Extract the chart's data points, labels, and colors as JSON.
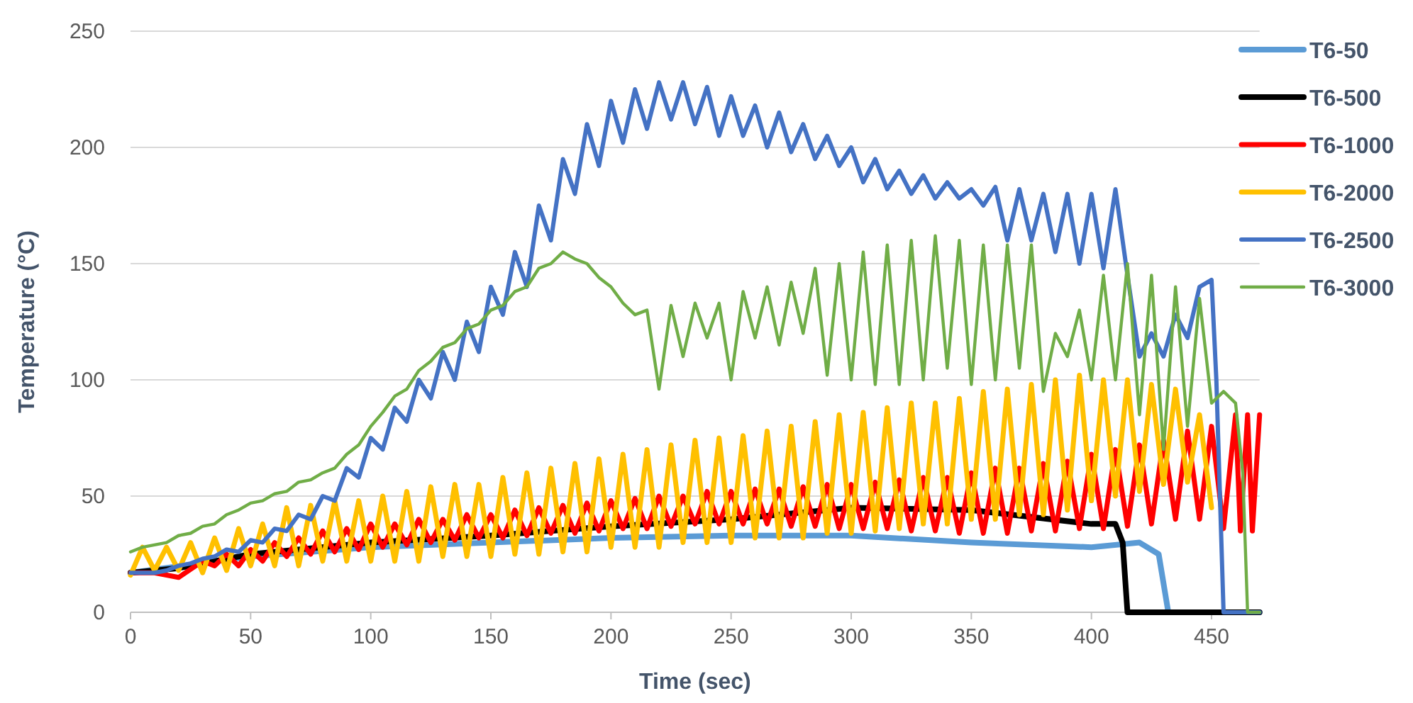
{
  "chart_data": {
    "type": "line",
    "xlabel": "Time (sec)",
    "ylabel": "Temperature (°C)",
    "xlim": [
      0,
      470
    ],
    "xticks": [
      0,
      50,
      100,
      150,
      200,
      250,
      300,
      350,
      400,
      450
    ],
    "ylim": [
      0,
      250
    ],
    "yticks": [
      0,
      50,
      100,
      150,
      200,
      250
    ],
    "grid": "y",
    "legend": "right",
    "marker": "none",
    "line_style": "solid",
    "series": [
      {
        "name": "T6-50",
        "color": "#5b9bd5",
        "x": [
          0,
          50,
          100,
          150,
          200,
          250,
          300,
          350,
          400,
          420,
          428,
          432,
          470
        ],
        "values": [
          17,
          24,
          28,
          30,
          32,
          33,
          33,
          30,
          28,
          30,
          25,
          0,
          0
        ]
      },
      {
        "name": "T6-500",
        "color": "#000000",
        "x": [
          0,
          20,
          50,
          100,
          150,
          200,
          250,
          300,
          350,
          400,
          410,
          413,
          415,
          470
        ],
        "values": [
          17,
          19,
          25,
          30,
          33,
          37,
          40,
          45,
          44,
          38,
          38,
          30,
          0,
          0
        ]
      },
      {
        "name": "T6-1000",
        "color": "#ff0000",
        "x": [
          0,
          10,
          20,
          30,
          35,
          40,
          45,
          50,
          55,
          60,
          65,
          70,
          75,
          80,
          85,
          90,
          95,
          100,
          105,
          110,
          115,
          120,
          125,
          130,
          135,
          140,
          145,
          150,
          155,
          160,
          165,
          170,
          175,
          180,
          185,
          190,
          195,
          200,
          205,
          210,
          215,
          220,
          225,
          230,
          235,
          240,
          245,
          250,
          255,
          260,
          265,
          270,
          275,
          280,
          285,
          290,
          295,
          300,
          305,
          310,
          315,
          320,
          325,
          330,
          335,
          340,
          345,
          350,
          355,
          360,
          365,
          370,
          375,
          380,
          385,
          390,
          395,
          400,
          405,
          410,
          415,
          420,
          425,
          430,
          435,
          440,
          445,
          450,
          455,
          460,
          462,
          465,
          467,
          470
        ],
        "values": [
          17,
          17,
          15,
          22,
          20,
          25,
          20,
          27,
          22,
          30,
          24,
          32,
          25,
          35,
          26,
          36,
          27,
          38,
          28,
          38,
          29,
          40,
          30,
          40,
          31,
          42,
          32,
          42,
          32,
          44,
          33,
          45,
          34,
          46,
          34,
          47,
          35,
          48,
          36,
          49,
          36,
          50,
          37,
          50,
          38,
          52,
          38,
          52,
          38,
          53,
          38,
          53,
          37,
          54,
          37,
          55,
          36,
          55,
          36,
          56,
          36,
          57,
          35,
          58,
          35,
          58,
          34,
          60,
          34,
          62,
          34,
          62,
          35,
          64,
          35,
          65,
          36,
          68,
          36,
          70,
          37,
          72,
          38,
          74,
          40,
          78,
          40,
          80,
          36,
          85,
          35,
          85,
          35,
          85
        ]
      },
      {
        "name": "T6-2000",
        "color": "#ffc000",
        "x": [
          0,
          5,
          10,
          15,
          20,
          25,
          30,
          35,
          40,
          45,
          50,
          55,
          60,
          65,
          70,
          75,
          80,
          85,
          90,
          95,
          100,
          105,
          110,
          115,
          120,
          125,
          130,
          135,
          140,
          145,
          150,
          155,
          160,
          165,
          170,
          175,
          180,
          185,
          190,
          195,
          200,
          205,
          210,
          215,
          220,
          225,
          230,
          235,
          240,
          245,
          250,
          255,
          260,
          265,
          270,
          275,
          280,
          285,
          290,
          295,
          300,
          305,
          310,
          315,
          320,
          325,
          330,
          335,
          340,
          345,
          350,
          355,
          360,
          365,
          370,
          375,
          380,
          385,
          390,
          395,
          400,
          405,
          410,
          415,
          420,
          425,
          430,
          435,
          440,
          445,
          450
        ],
        "values": [
          16,
          28,
          18,
          28,
          18,
          30,
          17,
          32,
          18,
          36,
          20,
          38,
          20,
          45,
          20,
          46,
          22,
          48,
          22,
          48,
          22,
          50,
          22,
          52,
          22,
          54,
          24,
          55,
          24,
          55,
          24,
          58,
          25,
          60,
          25,
          62,
          26,
          64,
          26,
          66,
          28,
          68,
          28,
          70,
          28,
          72,
          30,
          74,
          30,
          75,
          30,
          76,
          32,
          78,
          32,
          80,
          32,
          82,
          34,
          85,
          34,
          86,
          35,
          88,
          36,
          90,
          38,
          90,
          38,
          92,
          40,
          95,
          40,
          96,
          42,
          98,
          42,
          100,
          44,
          102,
          48,
          100,
          50,
          100,
          52,
          98,
          55,
          96,
          56,
          85,
          45
        ]
      },
      {
        "name": "T6-2500",
        "color": "#4472c4",
        "x": [
          0,
          5,
          10,
          15,
          20,
          25,
          30,
          35,
          40,
          45,
          50,
          55,
          60,
          65,
          70,
          75,
          80,
          85,
          90,
          95,
          100,
          105,
          110,
          115,
          120,
          125,
          130,
          135,
          140,
          145,
          150,
          155,
          160,
          165,
          170,
          175,
          180,
          185,
          190,
          195,
          200,
          205,
          210,
          215,
          220,
          225,
          230,
          235,
          240,
          245,
          250,
          255,
          260,
          265,
          270,
          275,
          280,
          285,
          290,
          295,
          300,
          305,
          310,
          315,
          320,
          325,
          330,
          335,
          340,
          345,
          350,
          355,
          360,
          365,
          370,
          375,
          380,
          385,
          390,
          395,
          400,
          405,
          410,
          415,
          420,
          425,
          430,
          435,
          440,
          445,
          450,
          452,
          455,
          470
        ],
        "values": [
          17,
          17,
          17,
          18,
          20,
          21,
          23,
          24,
          27,
          26,
          31,
          30,
          36,
          35,
          42,
          40,
          50,
          48,
          62,
          58,
          75,
          70,
          88,
          82,
          100,
          92,
          112,
          100,
          125,
          112,
          140,
          128,
          155,
          140,
          175,
          160,
          195,
          180,
          210,
          192,
          220,
          202,
          225,
          208,
          228,
          212,
          228,
          210,
          226,
          205,
          222,
          205,
          218,
          200,
          215,
          198,
          210,
          195,
          205,
          192,
          200,
          185,
          195,
          182,
          190,
          180,
          188,
          178,
          185,
          178,
          182,
          175,
          183,
          160,
          182,
          160,
          180,
          155,
          180,
          150,
          180,
          148,
          182,
          145,
          110,
          120,
          110,
          128,
          118,
          140,
          143,
          100,
          0,
          0
        ]
      },
      {
        "name": "T6-3000",
        "color": "#70ad47",
        "x": [
          0,
          5,
          10,
          15,
          20,
          25,
          30,
          35,
          40,
          45,
          50,
          55,
          60,
          65,
          70,
          75,
          80,
          85,
          90,
          95,
          100,
          105,
          110,
          115,
          120,
          125,
          130,
          135,
          140,
          145,
          150,
          155,
          160,
          165,
          170,
          175,
          180,
          185,
          190,
          195,
          200,
          205,
          210,
          215,
          220,
          225,
          230,
          235,
          240,
          245,
          250,
          255,
          260,
          265,
          270,
          275,
          280,
          285,
          290,
          295,
          300,
          305,
          310,
          315,
          320,
          325,
          330,
          335,
          340,
          345,
          350,
          355,
          360,
          365,
          370,
          375,
          380,
          385,
          390,
          395,
          400,
          405,
          410,
          415,
          420,
          425,
          430,
          435,
          440,
          445,
          450,
          455,
          460,
          463,
          465,
          470
        ],
        "values": [
          26,
          28,
          29,
          30,
          33,
          34,
          37,
          38,
          42,
          44,
          47,
          48,
          51,
          52,
          56,
          57,
          60,
          62,
          68,
          72,
          80,
          86,
          93,
          96,
          104,
          108,
          114,
          116,
          122,
          124,
          130,
          132,
          138,
          140,
          148,
          150,
          155,
          152,
          150,
          144,
          140,
          133,
          128,
          130,
          96,
          132,
          110,
          133,
          118,
          133,
          100,
          138,
          118,
          140,
          115,
          142,
          120,
          148,
          102,
          150,
          100,
          155,
          98,
          158,
          98,
          160,
          100,
          162,
          105,
          160,
          98,
          158,
          100,
          158,
          105,
          158,
          95,
          120,
          110,
          130,
          100,
          145,
          100,
          150,
          85,
          145,
          70,
          140,
          80,
          135,
          90,
          95,
          90,
          60,
          0,
          0
        ]
      }
    ]
  }
}
